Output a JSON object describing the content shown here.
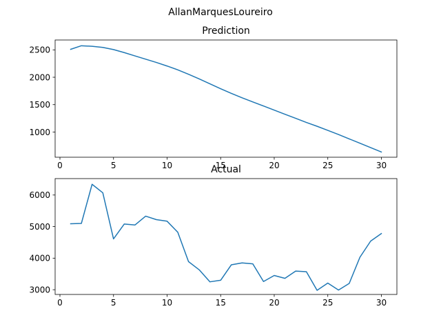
{
  "figure": {
    "suptitle": "AllanMarquesLoureiro"
  },
  "colors": {
    "line": "#1f77b4"
  },
  "chart_data": [
    {
      "type": "line",
      "title": "Prediction",
      "xlabel": "",
      "ylabel": "",
      "xlim": [
        -0.45,
        31.45
      ],
      "ylim": [
        540,
        2680
      ],
      "xticks": [
        0,
        5,
        10,
        15,
        20,
        25,
        30
      ],
      "yticks": [
        1000,
        1500,
        2000,
        2500
      ],
      "grid": false,
      "x": [
        1,
        2,
        3,
        4,
        5,
        6,
        7,
        8,
        9,
        10,
        11,
        12,
        13,
        14,
        15,
        16,
        17,
        18,
        19,
        20,
        21,
        22,
        23,
        24,
        25,
        26,
        27,
        28,
        29,
        30
      ],
      "series": [
        {
          "values": [
            2510,
            2575,
            2565,
            2545,
            2505,
            2450,
            2390,
            2330,
            2270,
            2205,
            2135,
            2055,
            1970,
            1880,
            1790,
            1705,
            1625,
            1550,
            1475,
            1400,
            1325,
            1250,
            1175,
            1105,
            1030,
            955,
            875,
            795,
            715,
            635
          ]
        }
      ]
    },
    {
      "type": "line",
      "title": "Actual",
      "xlabel": "",
      "ylabel": "",
      "xlim": [
        -0.45,
        31.45
      ],
      "ylim": [
        2850,
        6520
      ],
      "xticks": [
        0,
        5,
        10,
        15,
        20,
        25,
        30
      ],
      "yticks": [
        3000,
        4000,
        5000,
        6000
      ],
      "grid": false,
      "x": [
        1,
        2,
        3,
        4,
        5,
        6,
        7,
        8,
        9,
        10,
        11,
        12,
        13,
        14,
        15,
        16,
        17,
        18,
        19,
        20,
        21,
        22,
        23,
        24,
        25,
        26,
        27,
        28,
        29,
        30
      ],
      "series": [
        {
          "values": [
            5090,
            5100,
            6340,
            6070,
            4610,
            5080,
            5050,
            5330,
            5220,
            5170,
            4820,
            3890,
            3630,
            3250,
            3300,
            3790,
            3850,
            3820,
            3260,
            3450,
            3360,
            3590,
            3570,
            2980,
            3210,
            2990,
            3200,
            4030,
            4540,
            4780
          ]
        }
      ]
    }
  ]
}
